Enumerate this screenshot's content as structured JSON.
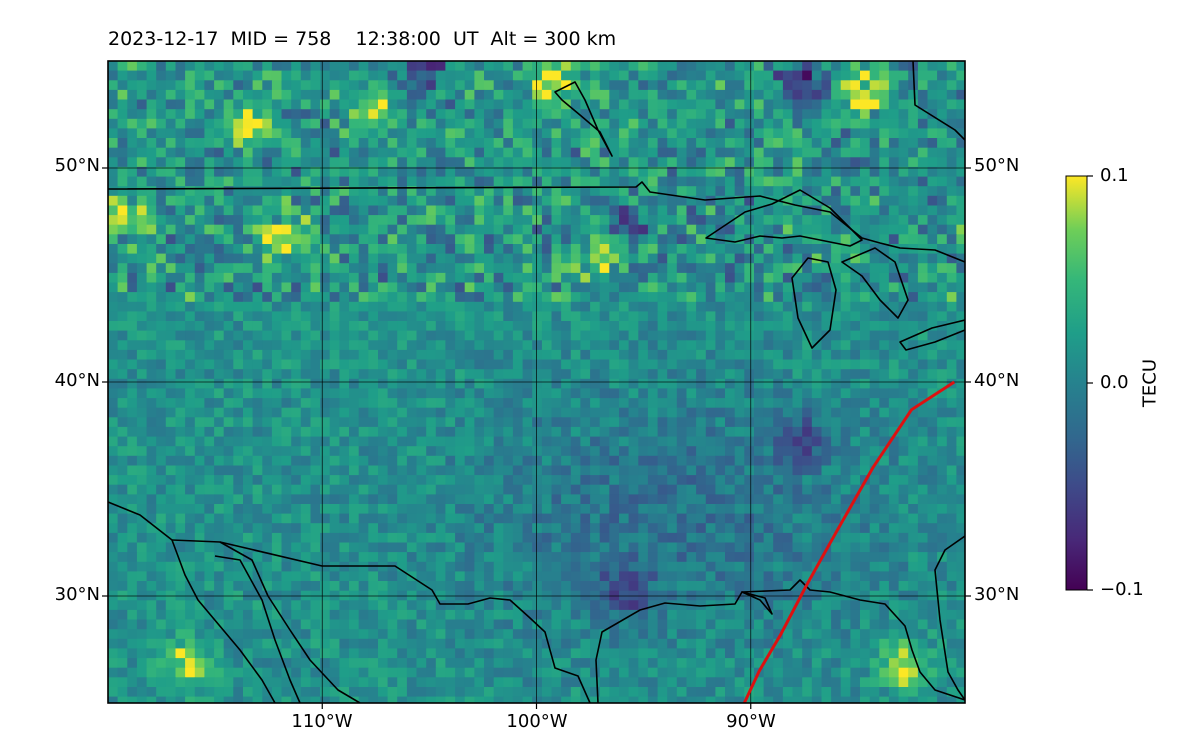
{
  "title": {
    "text": "2023-12-17  MID = 758    12:38:00  UT  Alt = 300 km"
  },
  "map": {
    "projection": "equirectangular",
    "lon_range": [
      -120,
      -80
    ],
    "lat_range": [
      25,
      55
    ],
    "colormap": "viridis",
    "gridlines": true,
    "meridian_labels": [
      "110°W",
      "100°W",
      "90°W"
    ],
    "parallel_labels": [
      "50°N",
      "40°N",
      "30°N"
    ],
    "coastline_color": "#000000",
    "track_color": "#dd1111"
  },
  "colorbar": {
    "label": "TECU",
    "max_label": "0.1",
    "mid_label": "0.0",
    "min_label": "−0.1",
    "range": [
      -0.1,
      0.1
    ]
  },
  "chart_data": {
    "type": "heatmap",
    "title": "2023-12-17  MID = 758    12:38:00  UT  Alt = 300 km",
    "xlabel": "",
    "ylabel": "",
    "x_range": [
      -120,
      -80
    ],
    "y_range": [
      25,
      55
    ],
    "x_ticks": [
      -110,
      -100,
      -90
    ],
    "y_ticks": [
      30,
      40,
      50
    ],
    "colorbar_label": "TECU",
    "value_range": [
      -0.1,
      0.1
    ],
    "colormap": "viridis",
    "track": {
      "color": "red",
      "points": [
        [
          -90.3,
          25.0
        ],
        [
          -89.6,
          26.5
        ],
        [
          -88.6,
          28.2
        ],
        [
          -87.4,
          30.5
        ],
        [
          -86.0,
          33.0
        ],
        [
          -84.3,
          36.0
        ],
        [
          -82.5,
          38.7
        ],
        [
          -80.5,
          40.0
        ]
      ]
    },
    "features": {
      "positive_anomalies": [
        {
          "lon": -113.5,
          "lat": 52.3,
          "value": 0.1
        },
        {
          "lon": -108.0,
          "lat": 53.0,
          "value": 0.08
        },
        {
          "lon": -99.5,
          "lat": 54.2,
          "value": 0.1
        },
        {
          "lon": -85.0,
          "lat": 53.7,
          "value": 0.09
        },
        {
          "lon": -119.6,
          "lat": 48.0,
          "value": 0.1
        },
        {
          "lon": -112.0,
          "lat": 47.0,
          "value": 0.08
        },
        {
          "lon": -97.0,
          "lat": 46.2,
          "value": 0.09
        },
        {
          "lon": -83.0,
          "lat": 27.0,
          "value": 0.1
        },
        {
          "lon": -116.5,
          "lat": 27.0,
          "value": 0.08
        }
      ],
      "negative_anomalies": [
        {
          "lon": -87.5,
          "lat": 54.0,
          "value": -0.1
        },
        {
          "lon": -96.0,
          "lat": 47.5,
          "value": -0.08
        },
        {
          "lon": -105.5,
          "lat": 54.8,
          "value": -0.07
        },
        {
          "lon": -96.0,
          "lat": 30.5,
          "value": -0.06
        },
        {
          "lon": -88.0,
          "lat": 37.5,
          "value": -0.06
        }
      ]
    }
  }
}
